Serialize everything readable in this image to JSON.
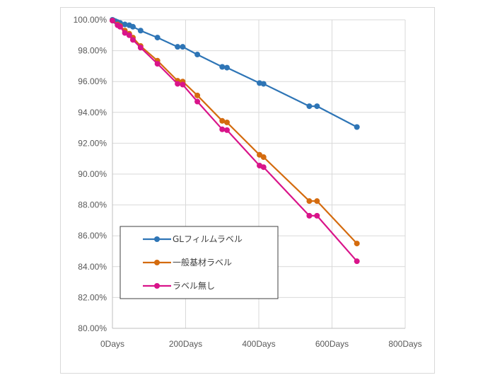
{
  "chart_data": {
    "type": "line",
    "title": "",
    "xlabel": "",
    "ylabel": "",
    "xlim": [
      0,
      800
    ],
    "ylim": [
      80,
      100
    ],
    "x_ticks": [
      0,
      200,
      400,
      600,
      800
    ],
    "x_tick_labels": [
      "0Days",
      "200Days",
      "400Days",
      "600Days",
      "800Days"
    ],
    "y_ticks": [
      80,
      82,
      84,
      86,
      88,
      90,
      92,
      94,
      96,
      98,
      100
    ],
    "y_tick_labels": [
      "80.00%",
      "82.00%",
      "84.00%",
      "86.00%",
      "88.00%",
      "90.00%",
      "92.00%",
      "94.00%",
      "96.00%",
      "98.00%",
      "100.00%"
    ],
    "grid": true,
    "legend_position": "lower-left",
    "series": [
      {
        "name": "GLフィルムラベル",
        "color": "#2e75b6",
        "points": [
          [
            0,
            100.0
          ],
          [
            4,
            99.95
          ],
          [
            9,
            99.9
          ],
          [
            14,
            99.85
          ],
          [
            21,
            99.8
          ],
          [
            34,
            99.7
          ],
          [
            46,
            99.65
          ],
          [
            56,
            99.55
          ],
          [
            77,
            99.3
          ],
          [
            123,
            98.85
          ],
          [
            178,
            98.25
          ],
          [
            192,
            98.25
          ],
          [
            232,
            97.75
          ],
          [
            300,
            96.95
          ],
          [
            313,
            96.9
          ],
          [
            402,
            95.9
          ],
          [
            413,
            95.85
          ],
          [
            538,
            94.4
          ],
          [
            559,
            94.4
          ],
          [
            668,
            93.05
          ]
        ]
      },
      {
        "name": "一般基材ラベル",
        "color": "#d46b0e",
        "points": [
          [
            0,
            99.95
          ],
          [
            14,
            99.7
          ],
          [
            21,
            99.6
          ],
          [
            34,
            99.3
          ],
          [
            46,
            99.1
          ],
          [
            56,
            98.85
          ],
          [
            77,
            98.3
          ],
          [
            123,
            97.35
          ],
          [
            178,
            96.05
          ],
          [
            192,
            96.0
          ],
          [
            232,
            95.1
          ],
          [
            300,
            93.45
          ],
          [
            313,
            93.35
          ],
          [
            402,
            91.25
          ],
          [
            413,
            91.1
          ],
          [
            538,
            88.25
          ],
          [
            559,
            88.25
          ],
          [
            668,
            85.5
          ]
        ]
      },
      {
        "name": "ラベル無し",
        "color": "#d9148a",
        "points": [
          [
            0,
            99.95
          ],
          [
            14,
            99.65
          ],
          [
            21,
            99.55
          ],
          [
            34,
            99.15
          ],
          [
            46,
            99.0
          ],
          [
            56,
            98.7
          ],
          [
            77,
            98.2
          ],
          [
            123,
            97.15
          ],
          [
            178,
            95.85
          ],
          [
            192,
            95.8
          ],
          [
            232,
            94.7
          ],
          [
            300,
            92.9
          ],
          [
            313,
            92.85
          ],
          [
            402,
            90.55
          ],
          [
            413,
            90.45
          ],
          [
            538,
            87.3
          ],
          [
            559,
            87.3
          ],
          [
            668,
            84.35
          ]
        ]
      }
    ]
  }
}
